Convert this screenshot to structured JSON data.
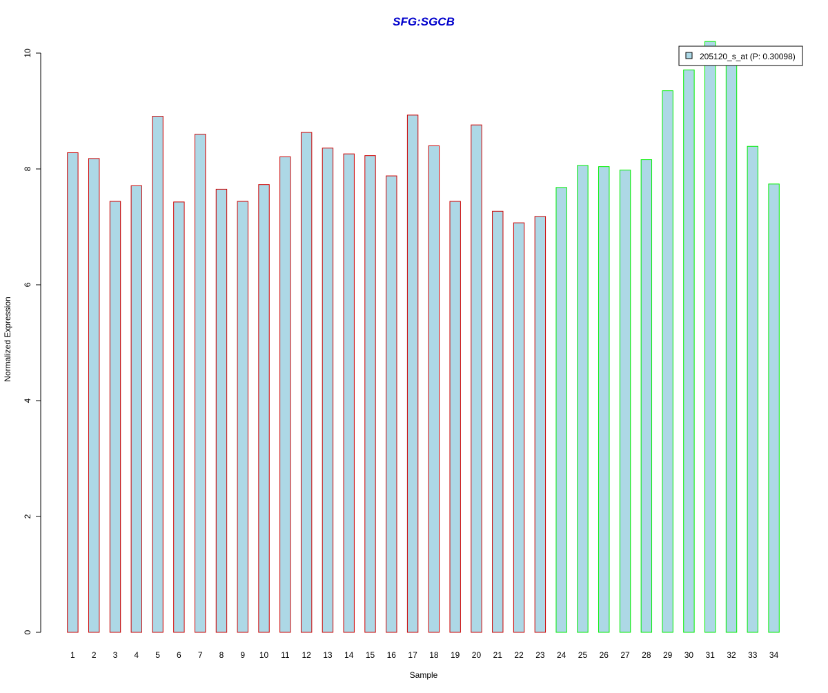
{
  "chart_data": {
    "type": "bar",
    "title": "SFG:SGCB",
    "xlabel": "Sample",
    "ylabel": "Normalized Expression",
    "ylim": [
      0,
      10
    ],
    "yticks": [
      "0",
      "2",
      "4",
      "6",
      "8",
      "10"
    ],
    "categories": [
      "1",
      "2",
      "3",
      "4",
      "5",
      "6",
      "7",
      "8",
      "9",
      "10",
      "11",
      "12",
      "13",
      "14",
      "15",
      "16",
      "17",
      "18",
      "19",
      "20",
      "21",
      "22",
      "23",
      "24",
      "25",
      "26",
      "27",
      "28",
      "29",
      "30",
      "31",
      "32",
      "33",
      "34"
    ],
    "series": [
      {
        "name": "205120_s_at (P: 0.30098)",
        "values": [
          8.28,
          8.18,
          7.44,
          7.71,
          8.91,
          7.43,
          8.6,
          7.65,
          7.44,
          7.73,
          8.21,
          8.63,
          8.36,
          8.26,
          8.23,
          7.88,
          8.93,
          8.4,
          7.44,
          8.76,
          7.27,
          7.07,
          7.18,
          7.68,
          8.06,
          8.04,
          7.98,
          8.16,
          9.35,
          9.71,
          10.2,
          9.85,
          8.39,
          7.74
        ]
      }
    ],
    "groups": [
      {
        "samples": [
          "1",
          "2",
          "3",
          "4",
          "5",
          "6",
          "7",
          "8",
          "9",
          "10",
          "11",
          "12",
          "13",
          "14",
          "15",
          "16",
          "17",
          "18",
          "19",
          "20",
          "21",
          "22",
          "23"
        ],
        "border_color": "#cc0000"
      },
      {
        "samples": [
          "24",
          "25",
          "26",
          "27",
          "28",
          "29",
          "30",
          "31",
          "32",
          "33",
          "34"
        ],
        "border_color": "#00ee00"
      }
    ],
    "legend": {
      "placement": "top-right",
      "entries": [
        "205120_s_at (P: 0.30098)"
      ]
    },
    "grid": false
  },
  "colors": {
    "bar_fill": "#add8e6",
    "title": "#0000cc",
    "axis": "#000000"
  }
}
